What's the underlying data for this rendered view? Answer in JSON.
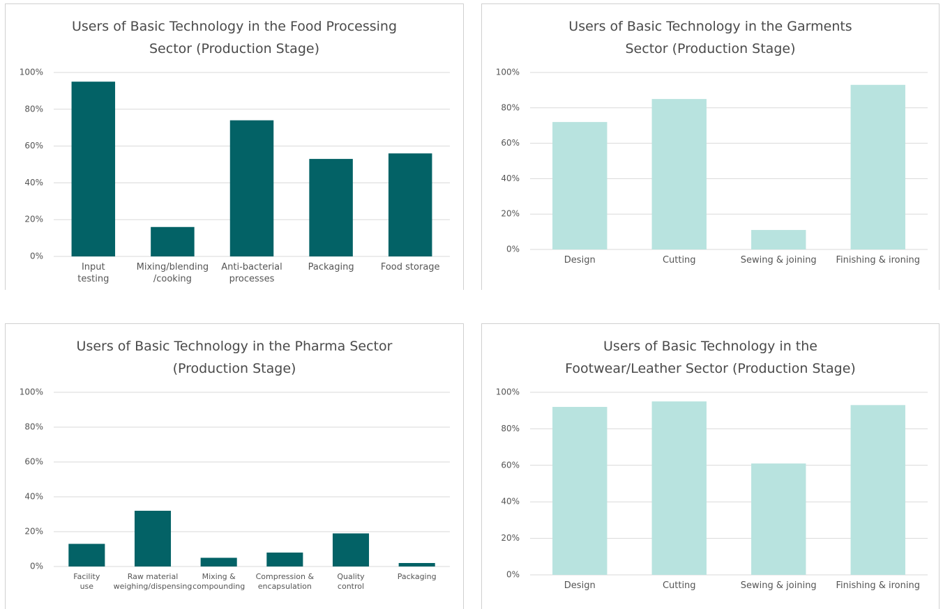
{
  "chart_data": [
    {
      "type": "bar",
      "title": "Users of Basic Technology in the Food Processing\nSector (Production Stage)",
      "categories": [
        "Input\ntesting",
        "Mixing/blending\n/cooking",
        "Anti-bacterial\nprocesses",
        "Packaging",
        "Food storage"
      ],
      "values": [
        95,
        16,
        74,
        53,
        56
      ],
      "color": "#036266",
      "ylim": [
        0,
        100
      ],
      "yticks": [
        {
          "value": 0,
          "label": "0%"
        },
        {
          "value": 20,
          "label": "20%"
        },
        {
          "value": 40,
          "label": "40%"
        },
        {
          "value": 60,
          "label": "60%"
        },
        {
          "value": 80,
          "label": "80%"
        },
        {
          "value": 100,
          "label": "100%"
        }
      ],
      "grid": true
    },
    {
      "type": "bar",
      "title": "Users of Basic Technology in the Garments\nSector (Production Stage)",
      "categories": [
        "Design",
        "Cutting",
        "Sewing & joining",
        "Finishing & ironing"
      ],
      "values": [
        72,
        85,
        11,
        93
      ],
      "color": "#b8e3df",
      "ylim": [
        0,
        100
      ],
      "yticks": [
        {
          "value": 0,
          "label": "0%"
        },
        {
          "value": 20,
          "label": "20%"
        },
        {
          "value": 40,
          "label": "40%"
        },
        {
          "value": 60,
          "label": "60%"
        },
        {
          "value": 80,
          "label": "80%"
        },
        {
          "value": 100,
          "label": "100%"
        }
      ],
      "grid": true
    },
    {
      "type": "bar",
      "title": "Users of Basic Technology in the Pharma Sector\n(Production Stage)",
      "categories": [
        "Facility\nuse",
        "Raw material\nweighing/dispensing",
        "Mixing &\ncompounding",
        "Compression &\nencapsulation",
        "Quality\ncontrol",
        "Packaging"
      ],
      "values": [
        13,
        32,
        5,
        8,
        19,
        2
      ],
      "color": "#036266",
      "ylim": [
        0,
        100
      ],
      "yticks": [
        {
          "value": 0,
          "label": "0%"
        },
        {
          "value": 20,
          "label": "20%"
        },
        {
          "value": 40,
          "label": "40%"
        },
        {
          "value": 60,
          "label": "60%"
        },
        {
          "value": 80,
          "label": "80%"
        },
        {
          "value": 100,
          "label": "100%"
        }
      ],
      "grid": true
    },
    {
      "type": "bar",
      "title": "Users of Basic Technology in the\nFootwear/Leather Sector (Production Stage)",
      "categories": [
        "Design",
        "Cutting",
        "Sewing & joining",
        "Finishing & ironing"
      ],
      "values": [
        92,
        95,
        61,
        93
      ],
      "color": "#b8e3df",
      "ylim": [
        0,
        100
      ],
      "yticks": [
        {
          "value": 0,
          "label": "0%"
        },
        {
          "value": 20,
          "label": "20%"
        },
        {
          "value": 40,
          "label": "40%"
        },
        {
          "value": 60,
          "label": "60%"
        },
        {
          "value": 80,
          "label": "80%"
        },
        {
          "value": 100,
          "label": "100%"
        }
      ],
      "grid": true
    }
  ]
}
